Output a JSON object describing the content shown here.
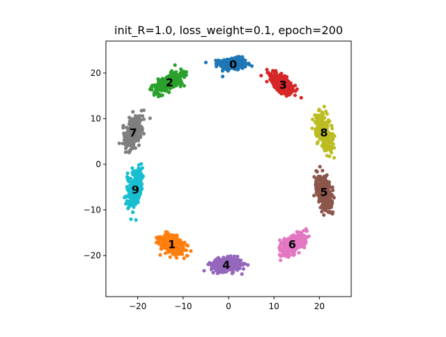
{
  "chart_data": {
    "type": "scatter",
    "title": "init_R=1.0, loss_weight=0.1, epoch=200",
    "xlabel": "",
    "ylabel": "",
    "xlim": [
      -27,
      27
    ],
    "ylim": [
      -29,
      27
    ],
    "xticks": [
      -20,
      -10,
      0,
      10,
      20
    ],
    "yticks": [
      -20,
      -10,
      0,
      10,
      20
    ],
    "xtick_labels": [
      "−20",
      "−10",
      "0",
      "10",
      "20"
    ],
    "ytick_labels": [
      "−20",
      "−10",
      "0",
      "10",
      "20"
    ],
    "grid": false,
    "legend": "none",
    "clusters": [
      {
        "label": "0",
        "color": "#1f77b4",
        "center": [
          1.0,
          22.0
        ],
        "spread": [
          2.7,
          1.2
        ],
        "angle_deg": 0
      },
      {
        "label": "1",
        "color": "#ff7f0e",
        "center": [
          -12.5,
          -17.5
        ],
        "spread": [
          2.6,
          1.6
        ],
        "angle_deg": -35
      },
      {
        "label": "2",
        "color": "#2ca02c",
        "center": [
          -13.0,
          18.0
        ],
        "spread": [
          3.2,
          1.4
        ],
        "angle_deg": 30
      },
      {
        "label": "3",
        "color": "#d62728",
        "center": [
          12.0,
          17.5
        ],
        "spread": [
          2.8,
          1.4
        ],
        "angle_deg": -40
      },
      {
        "label": "4",
        "color": "#9467bd",
        "center": [
          -0.5,
          -22.0
        ],
        "spread": [
          3.0,
          1.3
        ],
        "angle_deg": 0
      },
      {
        "label": "5",
        "color": "#8c564b",
        "center": [
          21.0,
          -6.0
        ],
        "spread": [
          1.4,
          3.5
        ],
        "angle_deg": 10
      },
      {
        "label": "6",
        "color": "#e377c2",
        "center": [
          14.0,
          -17.5
        ],
        "spread": [
          2.8,
          1.5
        ],
        "angle_deg": 35
      },
      {
        "label": "7",
        "color": "#7f7f7f",
        "center": [
          -21.0,
          7.0
        ],
        "spread": [
          1.4,
          3.3
        ],
        "angle_deg": -15
      },
      {
        "label": "8",
        "color": "#bcbd22",
        "center": [
          21.0,
          7.0
        ],
        "spread": [
          1.5,
          3.5
        ],
        "angle_deg": 15
      },
      {
        "label": "9",
        "color": "#17becf",
        "center": [
          -20.5,
          -5.5
        ],
        "spread": [
          1.4,
          3.5
        ],
        "angle_deg": -10
      }
    ]
  }
}
